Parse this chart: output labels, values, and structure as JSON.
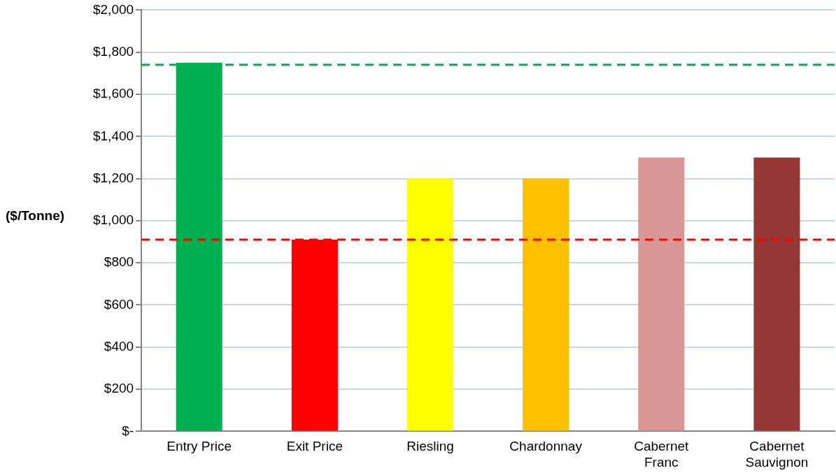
{
  "chart_data": {
    "type": "bar",
    "ylabel": "($/Tonne)",
    "categories": [
      "Entry Price",
      "Exit Price",
      "Riesling",
      "Chardonnay",
      "Cabernet\nFranc",
      "Cabernet\nSauvignon"
    ],
    "values": [
      1750,
      910,
      1200,
      1200,
      1300,
      1300
    ],
    "colors": [
      "#00b050",
      "#ff0000",
      "#ffff00",
      "#ffc000",
      "#d99694",
      "#953735"
    ],
    "ylim": [
      0,
      2000
    ],
    "yticks": [
      {
        "value": 0,
        "label": "$-"
      },
      {
        "value": 200,
        "label": "$200"
      },
      {
        "value": 400,
        "label": "$400"
      },
      {
        "value": 600,
        "label": "$600"
      },
      {
        "value": 800,
        "label": "$800"
      },
      {
        "value": 1000,
        "label": "$1,000"
      },
      {
        "value": 1200,
        "label": "$1,200"
      },
      {
        "value": 1400,
        "label": "$1,400"
      },
      {
        "value": 1600,
        "label": "$1,600"
      },
      {
        "value": 1800,
        "label": "$1,800"
      },
      {
        "value": 2000,
        "label": "$2,000"
      }
    ],
    "grid": "y",
    "ref_lines": [
      {
        "axis": "y",
        "value": 1740,
        "color": "#00b050",
        "line_style": "dashed"
      },
      {
        "axis": "y",
        "value": 910,
        "color": "#ff0000",
        "line_style": "dashed"
      }
    ]
  }
}
